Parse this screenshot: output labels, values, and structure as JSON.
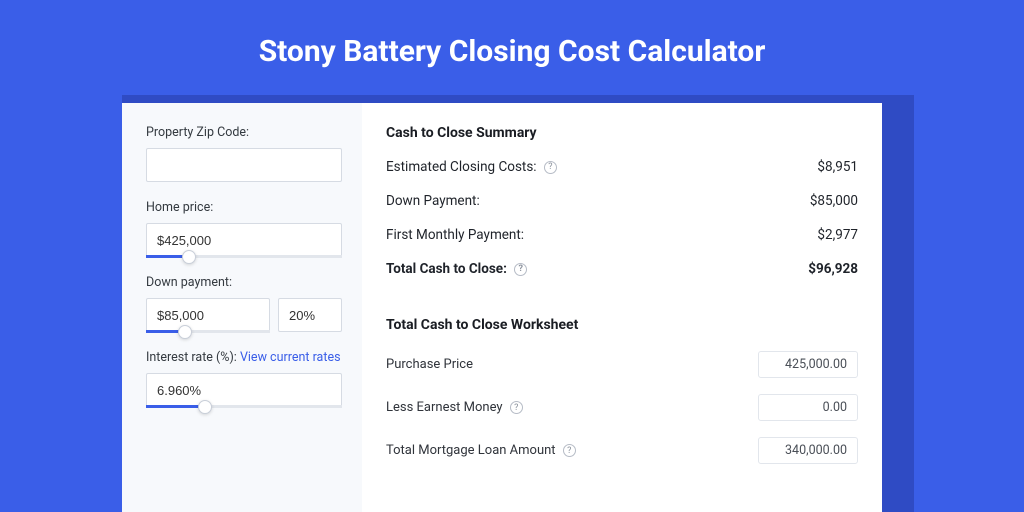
{
  "page": {
    "title": "Stony Battery Closing Cost Calculator",
    "background": "#3a5ee8",
    "shadow_color": "#2f4bc4",
    "card_bg": "#ffffff",
    "left_bg": "#f7f9fc"
  },
  "left": {
    "zip": {
      "label": "Property Zip Code:",
      "value": ""
    },
    "home_price": {
      "label": "Home price:",
      "value": "$425,000",
      "slider_fill_pct": 22
    },
    "down_payment": {
      "label": "Down payment:",
      "amount": "$85,000",
      "percent": "20%",
      "slider_fill_pct": 20
    },
    "interest": {
      "label_prefix": "Interest rate (%): ",
      "link_text": "View current rates",
      "value": "6.960%",
      "slider_fill_pct": 30
    }
  },
  "summary": {
    "title": "Cash to Close Summary",
    "rows": [
      {
        "label": "Estimated Closing Costs:",
        "help": true,
        "value": "$8,951"
      },
      {
        "label": "Down Payment:",
        "help": false,
        "value": "$85,000"
      },
      {
        "label": "First Monthly Payment:",
        "help": false,
        "value": "$2,977"
      }
    ],
    "total": {
      "label": "Total Cash to Close:",
      "help": true,
      "value": "$96,928"
    }
  },
  "worksheet": {
    "title": "Total Cash to Close Worksheet",
    "rows": [
      {
        "label": "Purchase Price",
        "help": false,
        "value": "425,000.00"
      },
      {
        "label": "Less Earnest Money",
        "help": true,
        "value": "0.00"
      },
      {
        "label": "Total Mortgage Loan Amount",
        "help": true,
        "value": "340,000.00"
      }
    ]
  }
}
